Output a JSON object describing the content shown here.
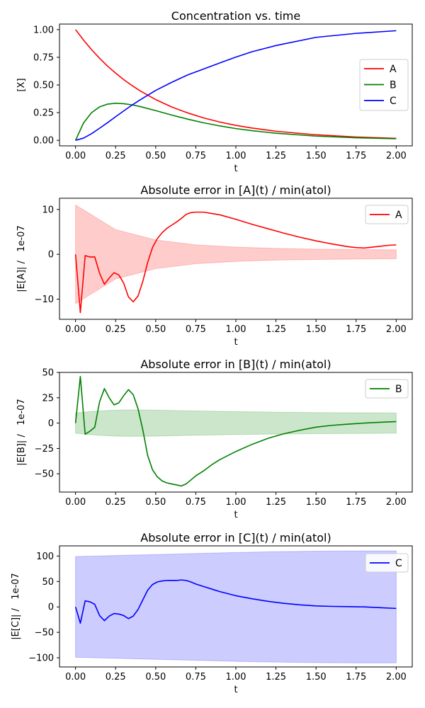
{
  "chart_data": [
    {
      "type": "line",
      "title": "Concentration vs. time",
      "xlabel": "t",
      "ylabel": "[X]",
      "xlim": [
        -0.1,
        2.1
      ],
      "ylim": [
        -0.05,
        1.05
      ],
      "xticks": [
        "0.00",
        "0.25",
        "0.50",
        "0.75",
        "1.00",
        "1.25",
        "1.50",
        "1.75",
        "2.00"
      ],
      "yticks": [
        "0.00",
        "0.25",
        "0.50",
        "0.75",
        "1.00"
      ],
      "legend": "center-right",
      "series": [
        {
          "name": "A",
          "color": "#ff0000",
          "x": [
            0,
            0.05,
            0.1,
            0.15,
            0.2,
            0.25,
            0.3,
            0.35,
            0.4,
            0.5,
            0.6,
            0.7,
            0.8,
            0.9,
            1.0,
            1.1,
            1.25,
            1.5,
            1.75,
            2.0
          ],
          "y": [
            1.0,
            0.905,
            0.819,
            0.741,
            0.67,
            0.607,
            0.549,
            0.497,
            0.449,
            0.368,
            0.301,
            0.247,
            0.202,
            0.165,
            0.135,
            0.111,
            0.082,
            0.05,
            0.03,
            0.018
          ]
        },
        {
          "name": "B",
          "color": "#008000",
          "x": [
            0,
            0.05,
            0.1,
            0.15,
            0.2,
            0.25,
            0.3,
            0.35,
            0.4,
            0.5,
            0.6,
            0.7,
            0.8,
            0.9,
            1.0,
            1.1,
            1.25,
            1.5,
            1.75,
            2.0
          ],
          "y": [
            0,
            0.157,
            0.25,
            0.302,
            0.327,
            0.335,
            0.331,
            0.321,
            0.306,
            0.268,
            0.228,
            0.191,
            0.158,
            0.13,
            0.106,
            0.087,
            0.064,
            0.038,
            0.023,
            0.014
          ]
        },
        {
          "name": "C",
          "color": "#0000ff",
          "x": [
            0,
            0.05,
            0.1,
            0.15,
            0.2,
            0.25,
            0.3,
            0.35,
            0.4,
            0.5,
            0.6,
            0.7,
            0.8,
            0.9,
            1.0,
            1.1,
            1.25,
            1.5,
            1.75,
            2.0
          ],
          "y": [
            0,
            0.02,
            0.06,
            0.109,
            0.16,
            0.213,
            0.265,
            0.316,
            0.363,
            0.451,
            0.524,
            0.591,
            0.645,
            0.699,
            0.752,
            0.8,
            0.856,
            0.93,
            0.966,
            0.99
          ]
        }
      ]
    },
    {
      "type": "line",
      "title": "Absolute error in [A](t) / min(atol)",
      "xlabel": "t",
      "ylabel": "|E[A]| /   1e-07",
      "xlim": [
        -0.1,
        2.1
      ],
      "ylim": [
        -14.5,
        12.5
      ],
      "xticks": [
        "0.00",
        "0.25",
        "0.50",
        "0.75",
        "1.00",
        "1.25",
        "1.50",
        "1.75",
        "2.00"
      ],
      "yticks": [
        "10",
        "0",
        "−10"
      ],
      "ytick_values": [
        10,
        0,
        -10
      ],
      "legend": "top-right",
      "band": {
        "color": "#ff0000",
        "x": [
          0,
          0.25,
          0.5,
          0.75,
          1.0,
          1.25,
          1.5,
          1.75,
          2.0
        ],
        "upper": [
          11,
          5.5,
          3.2,
          2.1,
          1.6,
          1.3,
          1.15,
          1.05,
          1.0
        ]
      },
      "series": [
        {
          "name": "A",
          "color": "#ff0000",
          "x": [
            0,
            0.03,
            0.06,
            0.09,
            0.12,
            0.15,
            0.18,
            0.21,
            0.24,
            0.27,
            0.3,
            0.33,
            0.36,
            0.39,
            0.42,
            0.45,
            0.48,
            0.51,
            0.54,
            0.57,
            0.6,
            0.63,
            0.66,
            0.69,
            0.72,
            0.75,
            0.8,
            0.85,
            0.9,
            1.0,
            1.1,
            1.2,
            1.3,
            1.4,
            1.5,
            1.6,
            1.7,
            1.75,
            1.8,
            1.85,
            1.9,
            1.95,
            2.0
          ],
          "y": [
            0,
            -13,
            -0.3,
            -0.6,
            -0.6,
            -4.2,
            -6.7,
            -5.3,
            -4.1,
            -4.6,
            -6.4,
            -9.5,
            -10.6,
            -9.3,
            -6,
            -1.8,
            1.5,
            3.5,
            4.8,
            5.8,
            6.5,
            7.2,
            8,
            8.9,
            9.3,
            9.4,
            9.4,
            9.1,
            8.8,
            7.8,
            6.7,
            5.7,
            4.7,
            3.8,
            3.0,
            2.3,
            1.7,
            1.5,
            1.4,
            1.6,
            1.8,
            2.0,
            2.1
          ]
        }
      ]
    },
    {
      "type": "line",
      "title": "Absolute error in [B](t) / min(atol)",
      "xlabel": "t",
      "ylabel": "|E[B]| /   1e-07",
      "xlim": [
        -0.1,
        2.1
      ],
      "ylim": [
        -68,
        50
      ],
      "xticks": [
        "0.00",
        "0.25",
        "0.50",
        "0.75",
        "1.00",
        "1.25",
        "1.50",
        "1.75",
        "2.00"
      ],
      "yticks": [
        "50",
        "25",
        "0",
        "−25",
        "−50"
      ],
      "ytick_values": [
        50,
        25,
        0,
        -25,
        -50
      ],
      "legend": "top-right",
      "band": {
        "color": "#008000",
        "x": [
          0,
          0.1,
          0.2,
          0.3,
          0.4,
          0.5,
          0.75,
          1.0,
          1.25,
          1.5,
          1.75,
          2.0
        ],
        "upper": [
          10,
          11.5,
          12.5,
          13,
          13,
          12.8,
          12,
          11.3,
          10.8,
          10.4,
          10.2,
          10
        ]
      },
      "series": [
        {
          "name": "B",
          "color": "#008000",
          "x": [
            0,
            0.03,
            0.06,
            0.09,
            0.12,
            0.15,
            0.18,
            0.21,
            0.24,
            0.27,
            0.3,
            0.33,
            0.36,
            0.39,
            0.42,
            0.45,
            0.48,
            0.51,
            0.54,
            0.57,
            0.6,
            0.63,
            0.66,
            0.69,
            0.72,
            0.75,
            0.8,
            0.85,
            0.9,
            1.0,
            1.1,
            1.2,
            1.3,
            1.4,
            1.5,
            1.6,
            1.7,
            1.8,
            1.9,
            2.0
          ],
          "y": [
            0,
            46,
            -11,
            -8,
            -4,
            21,
            34,
            25,
            18,
            20,
            27,
            33,
            28,
            14,
            -7,
            -32,
            -46,
            -53,
            -57,
            -59,
            -60,
            -61,
            -62,
            -60,
            -56,
            -52,
            -47,
            -41,
            -36,
            -28,
            -21,
            -15,
            -10.5,
            -7,
            -4,
            -2.2,
            -1,
            0,
            0.8,
            1.5
          ]
        }
      ]
    },
    {
      "type": "line",
      "title": "Absolute error in [C](t) / min(atol)",
      "xlabel": "t",
      "ylabel": "|E[C]| /   1e-07",
      "xlim": [
        -0.1,
        2.1
      ],
      "ylim": [
        -118,
        120
      ],
      "xticks": [
        "0.00",
        "0.25",
        "0.50",
        "0.75",
        "1.00",
        "1.25",
        "1.50",
        "1.75",
        "2.00"
      ],
      "yticks": [
        "100",
        "50",
        "0",
        "−50",
        "−100"
      ],
      "ytick_values": [
        100,
        50,
        0,
        -50,
        -100
      ],
      "legend": "top-right",
      "band": {
        "color": "#0000ff",
        "x": [
          0,
          0.25,
          0.5,
          0.75,
          1.0,
          1.25,
          1.5,
          1.75,
          2.0
        ],
        "upper": [
          99,
          101,
          103,
          105,
          107,
          108.5,
          109.5,
          110,
          110
        ]
      },
      "series": [
        {
          "name": "C",
          "color": "#0000ff",
          "x": [
            0,
            0.03,
            0.06,
            0.09,
            0.12,
            0.15,
            0.18,
            0.21,
            0.24,
            0.27,
            0.3,
            0.33,
            0.36,
            0.39,
            0.42,
            0.45,
            0.48,
            0.51,
            0.54,
            0.57,
            0.6,
            0.63,
            0.66,
            0.69,
            0.72,
            0.75,
            0.8,
            0.85,
            0.9,
            1.0,
            1.1,
            1.2,
            1.3,
            1.4,
            1.5,
            1.6,
            1.7,
            1.8,
            1.9,
            2.0
          ],
          "y": [
            0,
            -32,
            12,
            10,
            5,
            -17,
            -27,
            -18,
            -13,
            -14,
            -17,
            -23,
            -18,
            -5,
            14,
            33,
            44,
            49,
            51,
            52,
            52,
            52,
            53,
            52,
            49,
            45,
            40,
            35,
            30,
            22,
            16,
            11,
            7,
            4,
            2,
            1,
            0.5,
            0,
            -1.5,
            -3
          ]
        }
      ]
    }
  ]
}
